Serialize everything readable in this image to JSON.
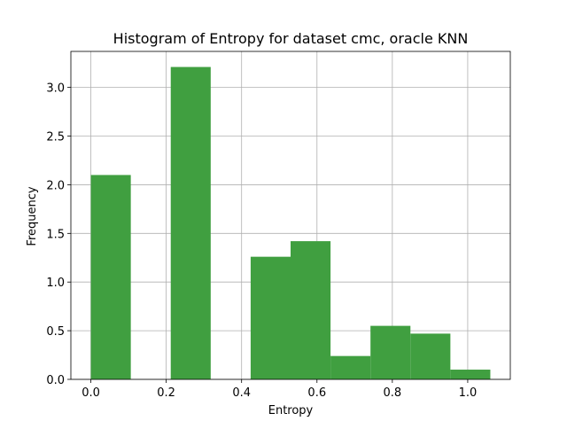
{
  "chart_data": {
    "type": "bar",
    "title": "Histogram of Entropy for dataset cmc, oracle KNN",
    "xlabel": "Entropy",
    "ylabel": "Frequency",
    "xlim": [
      -0.053,
      1.113
    ],
    "ylim": [
      0,
      3.37
    ],
    "grid": true,
    "bar_color": "#409f40",
    "bins": [
      {
        "x0": 0.0,
        "x1": 0.106,
        "value": 2.1
      },
      {
        "x0": 0.106,
        "x1": 0.212,
        "value": 0.0
      },
      {
        "x0": 0.212,
        "x1": 0.318,
        "value": 3.21
      },
      {
        "x0": 0.318,
        "x1": 0.424,
        "value": 0.0
      },
      {
        "x0": 0.424,
        "x1": 0.53,
        "value": 1.26
      },
      {
        "x0": 0.53,
        "x1": 0.636,
        "value": 1.42
      },
      {
        "x0": 0.636,
        "x1": 0.742,
        "value": 0.24
      },
      {
        "x0": 0.742,
        "x1": 0.848,
        "value": 0.55
      },
      {
        "x0": 0.848,
        "x1": 0.954,
        "value": 0.47
      },
      {
        "x0": 0.954,
        "x1": 1.06,
        "value": 0.1
      }
    ],
    "x_ticks": [
      {
        "value": 0.0,
        "label": "0.0"
      },
      {
        "value": 0.2,
        "label": "0.2"
      },
      {
        "value": 0.4,
        "label": "0.4"
      },
      {
        "value": 0.6,
        "label": "0.6"
      },
      {
        "value": 0.8,
        "label": "0.8"
      },
      {
        "value": 1.0,
        "label": "1.0"
      }
    ],
    "y_ticks": [
      {
        "value": 0.0,
        "label": "0.0"
      },
      {
        "value": 0.5,
        "label": "0.5"
      },
      {
        "value": 1.0,
        "label": "1.0"
      },
      {
        "value": 1.5,
        "label": "1.5"
      },
      {
        "value": 2.0,
        "label": "2.0"
      },
      {
        "value": 2.5,
        "label": "2.5"
      },
      {
        "value": 3.0,
        "label": "3.0"
      }
    ]
  }
}
